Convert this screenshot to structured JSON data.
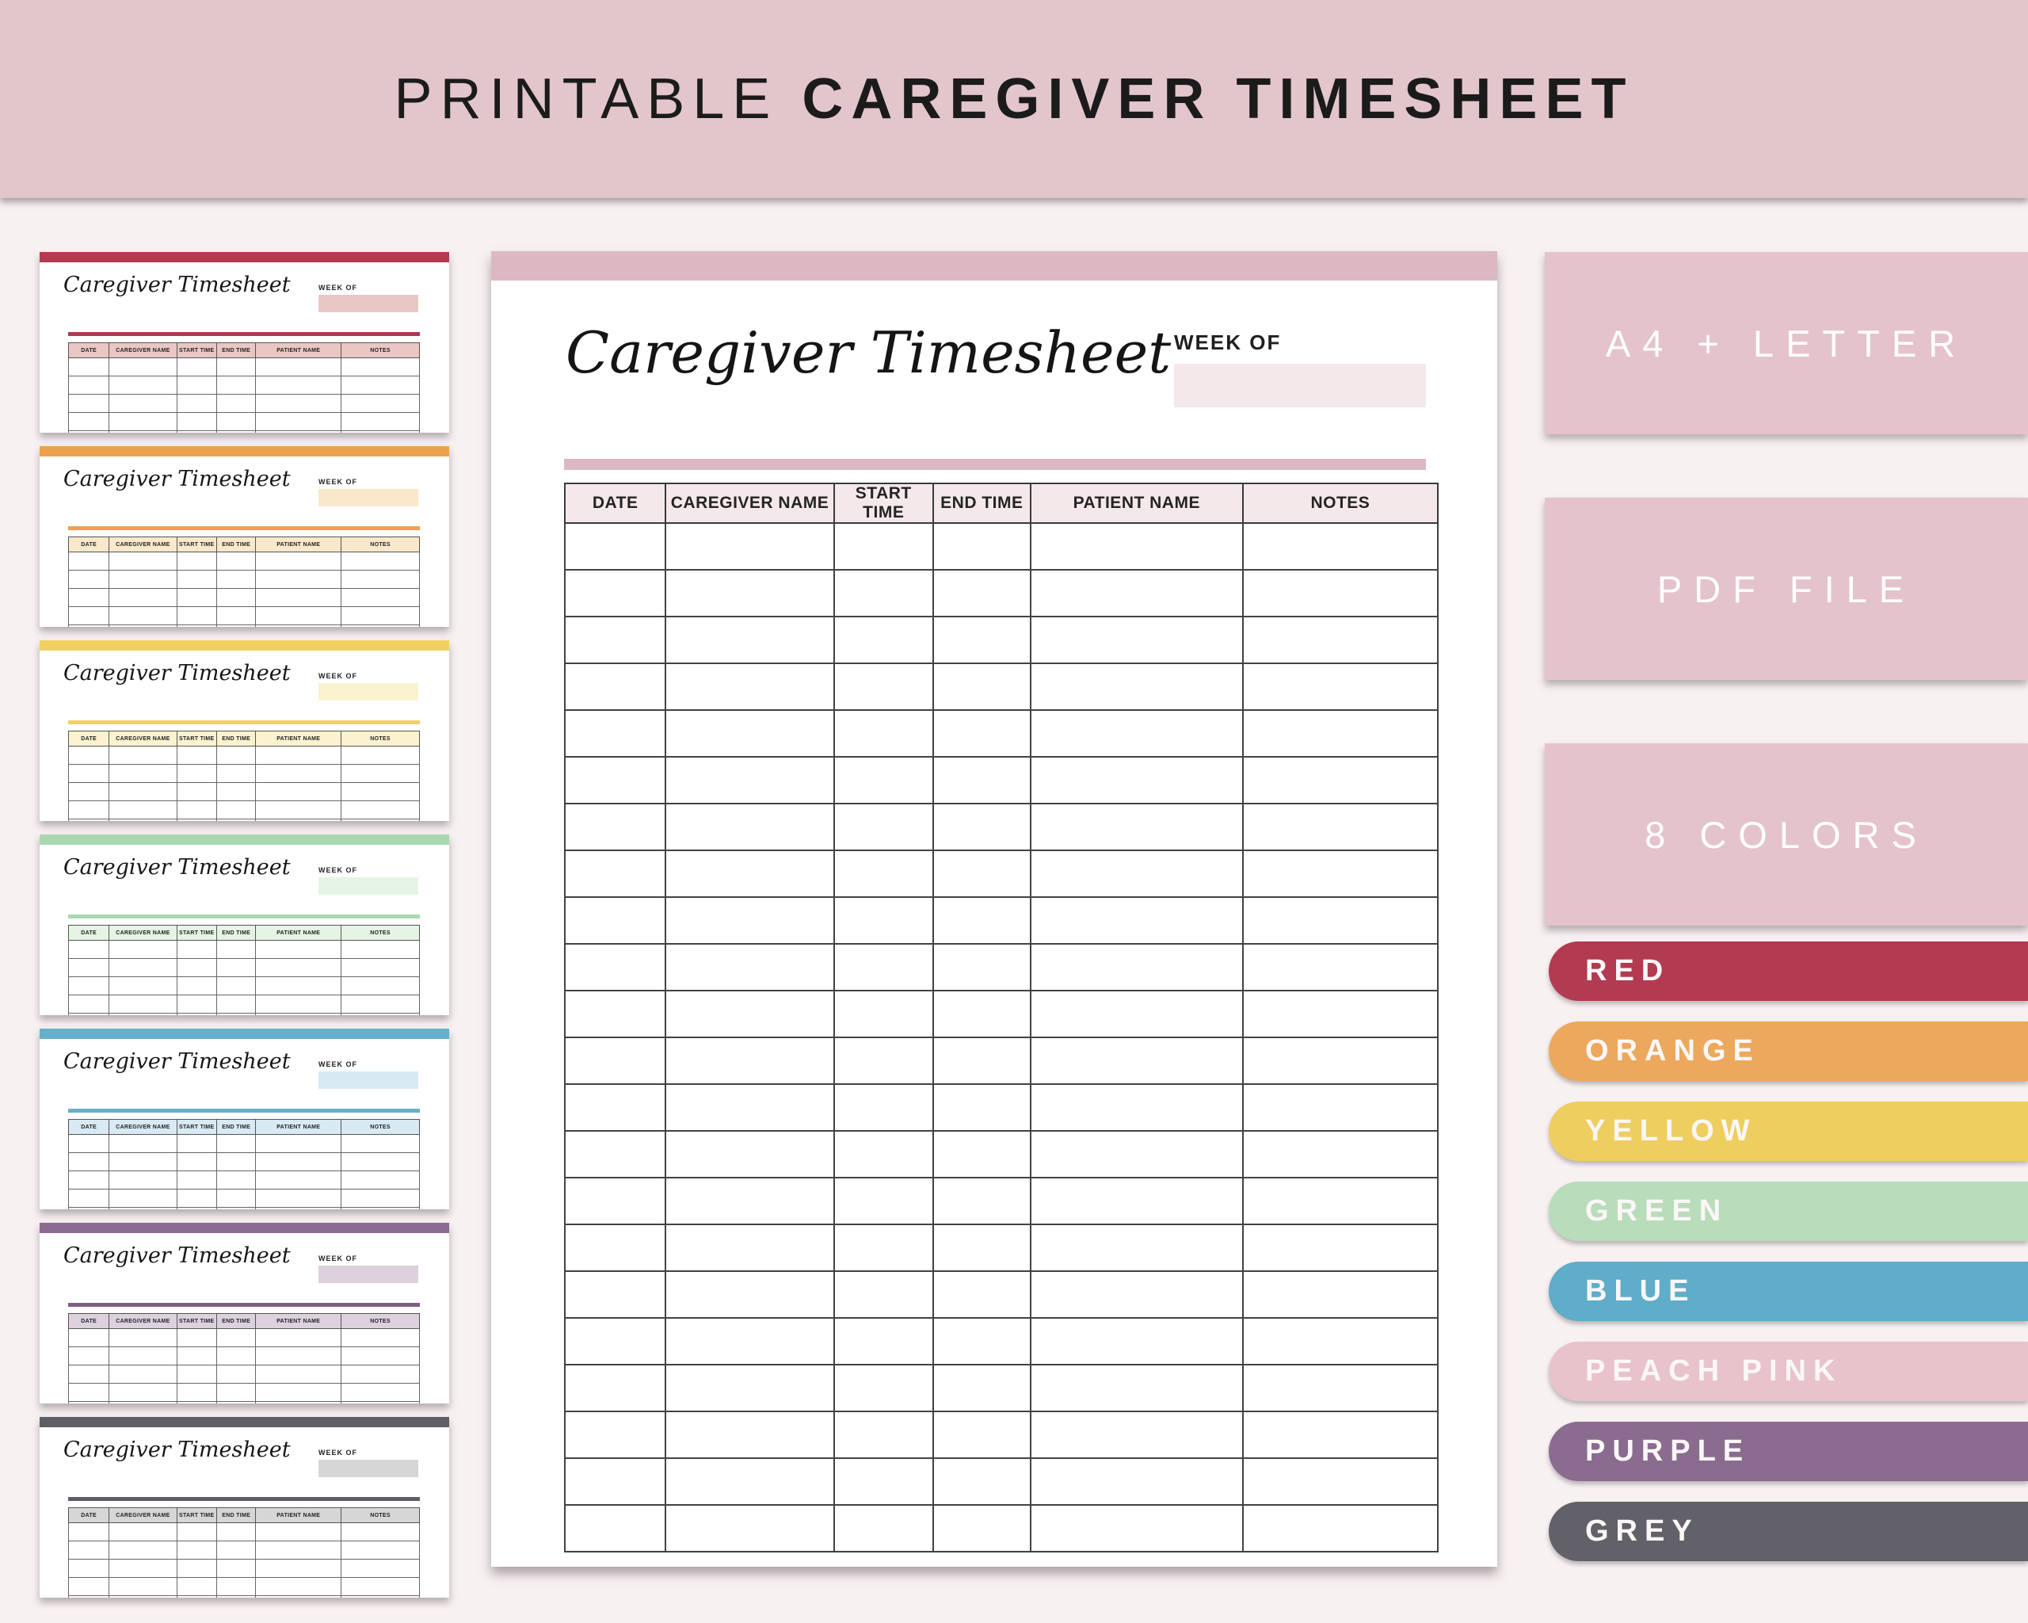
{
  "banner": {
    "title_regular": "PRINTABLE",
    "title_bold": "CAREGIVER TIMESHEET"
  },
  "sheet": {
    "title": "Caregiver Timesheet",
    "week_of_label": "WEEK OF",
    "columns": [
      "DATE",
      "CAREGIVER NAME",
      "START TIME",
      "END TIME",
      "PATIENT NAME",
      "NOTES"
    ],
    "main_preview_empty_rows": 22,
    "thumbnail_empty_rows": 5
  },
  "main_preview": {
    "theme": "peach pink",
    "accent_color": "#dcb8c2",
    "tint_color": "#f5e8ea"
  },
  "thumbnails": [
    {
      "theme": "red",
      "bar_color": "#b23a51",
      "tint_color": "#eac7c3",
      "accent_color": "#a93b52"
    },
    {
      "theme": "orange",
      "bar_color": "#eca24c",
      "tint_color": "#f9e8ca",
      "accent_color": "#eca24c"
    },
    {
      "theme": "yellow",
      "bar_color": "#efd160",
      "tint_color": "#fbf2d0",
      "accent_color": "#efd160"
    },
    {
      "theme": "green",
      "bar_color": "#a9d8ae",
      "tint_color": "#e6f4e5",
      "accent_color": "#a9d8ae"
    },
    {
      "theme": "blue",
      "bar_color": "#66b0ca",
      "tint_color": "#d8eaf3",
      "accent_color": "#66b0ca"
    },
    {
      "theme": "purple",
      "bar_color": "#8a6c8f",
      "tint_color": "#ddd1de",
      "accent_color": "#7d5f82"
    },
    {
      "theme": "grey",
      "bar_color": "#5f5e67",
      "tint_color": "#d6d5d8",
      "accent_color": "#5f5e67"
    }
  ],
  "badges": [
    {
      "label": "A4 + LETTER"
    },
    {
      "label": "PDF FILE"
    },
    {
      "label": "8 COLORS"
    }
  ],
  "swatches": [
    {
      "label": "RED",
      "color": "#b23a51"
    },
    {
      "label": "ORANGE",
      "color": "#eca85c"
    },
    {
      "label": "YELLOW",
      "color": "#efce60"
    },
    {
      "label": "GREEN",
      "color": "#b9dcba"
    },
    {
      "label": "BLUE",
      "color": "#5fadc8"
    },
    {
      "label": "PEACH PINK",
      "color": "#e8c3cc"
    },
    {
      "label": "PURPLE",
      "color": "#8a6c8f"
    },
    {
      "label": "GREY",
      "color": "#626069"
    }
  ],
  "colors": {
    "banner_background": "#e3c5cc",
    "page_background": "#f8f1f2",
    "badge_background": "#e5c3cc",
    "paper": "#ffffff",
    "text_dark": "#1b1b1b"
  }
}
